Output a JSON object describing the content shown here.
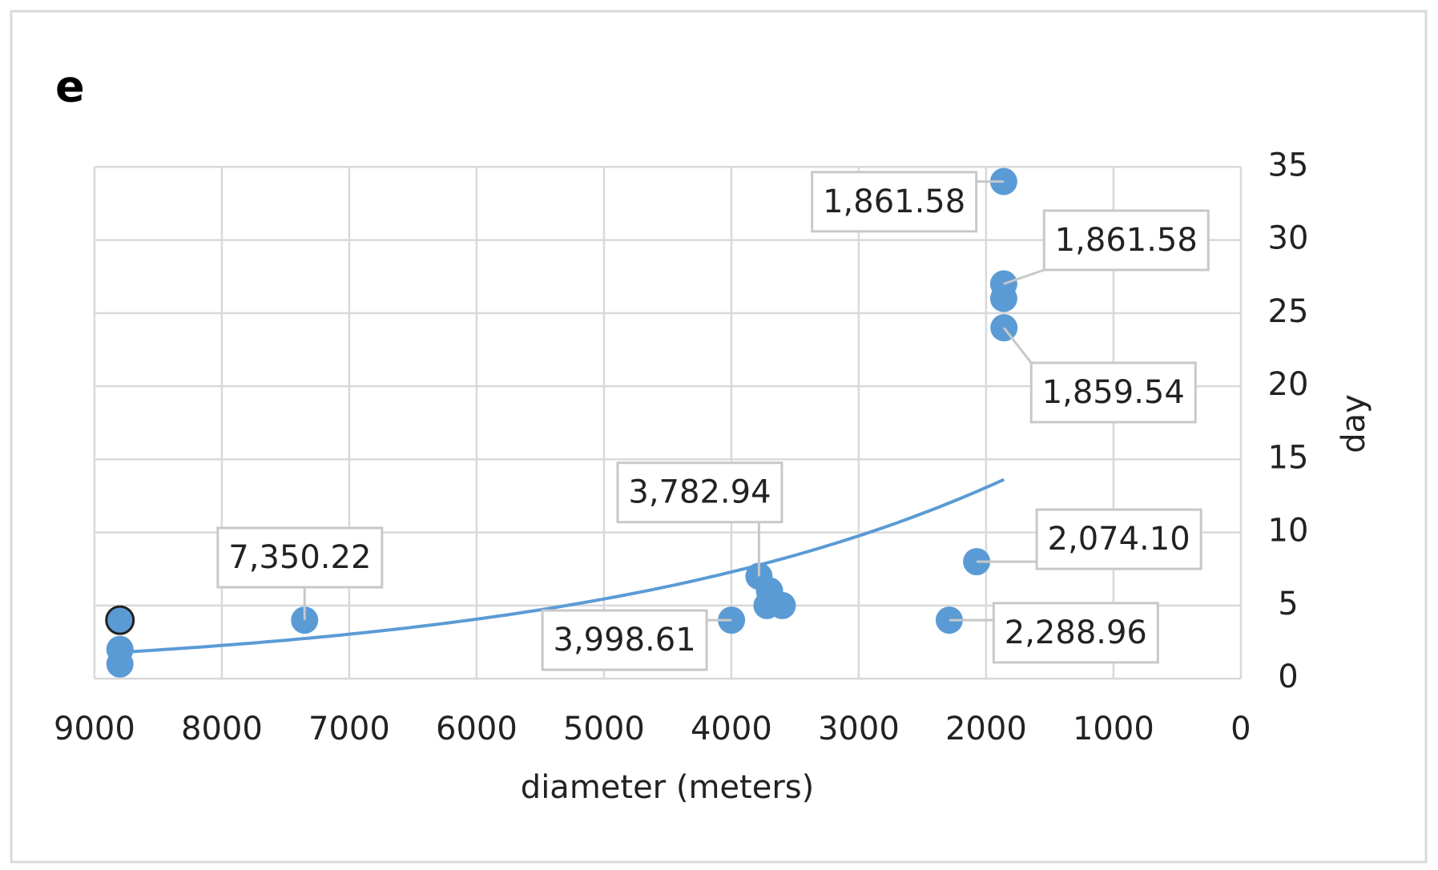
{
  "chart_data": {
    "type": "scatter",
    "title": "e",
    "x_label": "diameter (meters)",
    "y_label": "day",
    "x": [
      8800,
      8800,
      8800,
      7350.22,
      3998.61,
      3782.94,
      3700,
      3720,
      3600,
      2288.96,
      2074.1,
      1861.58,
      1861.58,
      1861.58,
      1859.54
    ],
    "values": [
      4,
      2,
      1,
      4,
      4,
      7,
      6,
      5,
      5,
      4,
      8,
      34,
      27,
      26,
      24
    ],
    "value_labels": [
      null,
      null,
      null,
      "7,350.22",
      "3,998.61",
      "3,782.94",
      null,
      null,
      null,
      "2,288.96",
      "2,074.10",
      "1,861.58",
      "1,861.58",
      null,
      "1,859.54"
    ],
    "color": "#5b9bd5",
    "xlim": [
      9000,
      0
    ],
    "xticks": [
      9000,
      8000,
      7000,
      6000,
      5000,
      4000,
      3000,
      2000,
      1000,
      0
    ],
    "ylim": [
      0,
      35
    ],
    "yticks": [
      0,
      5,
      10,
      15,
      20,
      25,
      30,
      35
    ],
    "grid": true,
    "trendline": "exponential"
  }
}
